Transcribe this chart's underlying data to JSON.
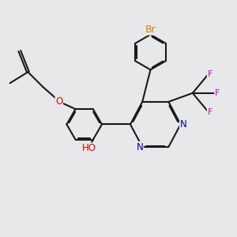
{
  "bg_color": "#e8e8ea",
  "bond_color": "#1a1a1a",
  "bond_lw": 1.5,
  "colors": {
    "O": "#cc1100",
    "N": "#0000bb",
    "F": "#cc00cc",
    "Br": "#cc8800",
    "C": "#1a1a1a"
  },
  "fs": 8.5,
  "xlim": [
    -1.0,
    9.5
  ],
  "ylim": [
    -0.5,
    9.5
  ]
}
